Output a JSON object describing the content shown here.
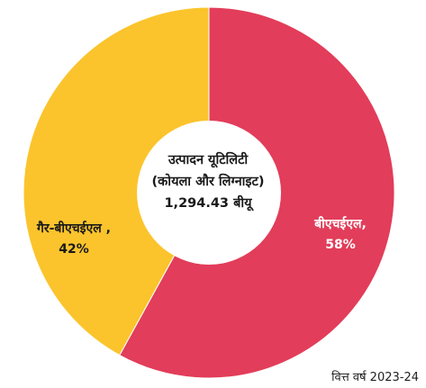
{
  "chart_data": {
    "type": "pie",
    "style": "donut",
    "center": {
      "line1": "उत्पादन यूटिलिटी",
      "line2": "(कोयला और लिग्नाइट)",
      "line3": "1,294.43 बीयू"
    },
    "slices": [
      {
        "label": "बीएचईएल,",
        "pct_text": "58%",
        "value": 58,
        "color": "#e23d5a"
      },
      {
        "label": "गैर-बीएचईएल ,",
        "pct_text": "42%",
        "value": 42,
        "color": "#fbc42c"
      }
    ],
    "footnote": "वित्त वर्ष 2023-24"
  }
}
